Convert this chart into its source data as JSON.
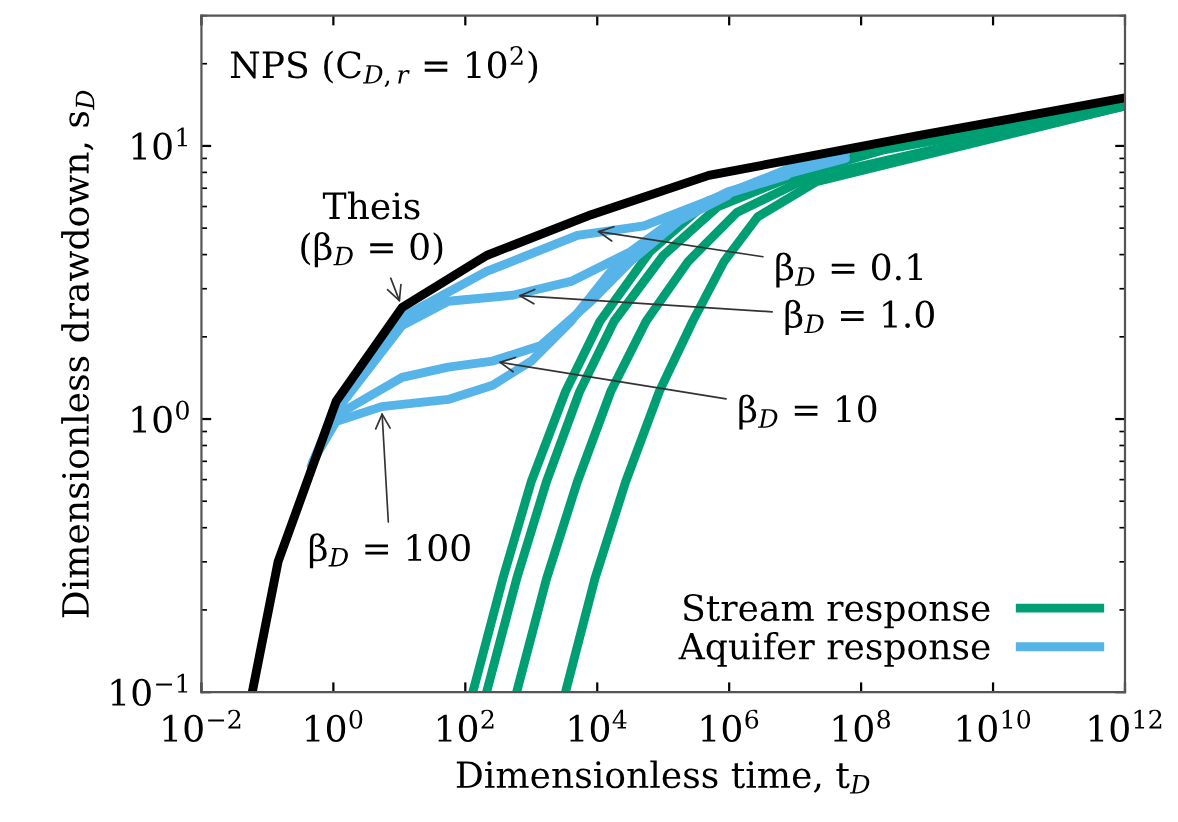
{
  "chart_data": {
    "type": "line",
    "xlabel": "Dimensionless time, t$_{D}$",
    "ylabel": "Dimensionless drawdown, s$_{D}$",
    "log": "xy",
    "legend": "bottom right",
    "marker": "none",
    "line_style": "solid",
    "xlim": [
      0.01,
      1000000000000.0
    ],
    "ylim": [
      0.1,
      30
    ],
    "xticks": [
      {
        "value": 0.01,
        "label": "10$^{−2}$"
      },
      {
        "value": 1,
        "label": "10$^{0}$"
      },
      {
        "value": 100,
        "label": "10$^{2}$"
      },
      {
        "value": 10000,
        "label": "10$^{4}$"
      },
      {
        "value": 1000000.0,
        "label": "10$^{6}$"
      },
      {
        "value": 100000000.0,
        "label": "10$^{8}$"
      },
      {
        "value": 10000000000.0,
        "label": "10$^{10}$"
      },
      {
        "value": 1000000000000.0,
        "label": "10$^{12}$"
      }
    ],
    "yticks": [
      {
        "value": 0.1,
        "label": "10$^{−1}$"
      },
      {
        "value": 1,
        "label": "10$^{0}$"
      },
      {
        "value": 10,
        "label": "10$^{1}$"
      }
    ],
    "series": [
      {
        "color": "#000000",
        "x": [
          0.059,
          0.145,
          0.4,
          1.1,
          11,
          210,
          8100,
          490000,
          730000000.0,
          66000000000.0,
          1000000000000.0
        ],
        "values": [
          0.1,
          0.3,
          0.59,
          1.16,
          2.56,
          3.97,
          5.6,
          7.8,
          10.9,
          13.3,
          15.0
        ]
      },
      {
        "name": "Stream response",
        "color": "#009e73",
        "x": [
          130,
          370,
          1000,
          3300,
          11000,
          63000,
          490000,
          7500000.0,
          230000000.0,
          6900000000.0,
          1000000000000.0
        ],
        "values": [
          0.1,
          0.26,
          0.59,
          1.26,
          2.28,
          4.1,
          6.3,
          7.9,
          9.8,
          11.6,
          14.0
        ]
      },
      {
        "color": "#009e73",
        "x": [
          210,
          600,
          1700,
          5400,
          18000,
          100000,
          680000,
          10000000.0,
          230000000.0,
          1000000000000.0
        ],
        "values": [
          0.1,
          0.26,
          0.59,
          1.26,
          2.28,
          3.97,
          6.0,
          7.8,
          9.7,
          14.0
        ]
      },
      {
        "color": "#009e73",
        "x": [
          600,
          1700,
          5000,
          16000,
          55000,
          240000,
          1300000.0,
          15000000.0,
          1000000000000.0
        ],
        "values": [
          0.1,
          0.26,
          0.59,
          1.26,
          2.28,
          3.78,
          5.7,
          7.6,
          14.0
        ]
      },
      {
        "color": "#009e73",
        "x": [
          3300,
          9200,
          27000,
          87000,
          280000,
          840000,
          2700000.0,
          21000000.0,
          1000000000000.0
        ],
        "values": [
          0.1,
          0.26,
          0.59,
          1.26,
          2.28,
          3.78,
          5.5,
          7.4,
          14.0
        ]
      },
      {
        "name": "Aquifer response",
        "color": "#56b4e9",
        "x": [
          0.46,
          1.1,
          11,
          210,
          5000,
          51000,
          490000,
          7500000.0,
          58000000.0
        ],
        "values": [
          0.67,
          1.11,
          2.36,
          3.47,
          4.7,
          5.1,
          6.3,
          8.2,
          9.4
        ]
      },
      {
        "color": "#56b4e9",
        "x": [
          0.48,
          1.1,
          11,
          55,
          520,
          4000,
          32000,
          170000,
          960000,
          7500000.0,
          58000000.0
        ],
        "values": [
          0.69,
          1.07,
          2.2,
          2.7,
          2.84,
          3.19,
          4.1,
          5.5,
          6.8,
          7.9,
          9.0
        ]
      },
      {
        "color": "#56b4e9",
        "x": [
          0.5,
          1.1,
          11,
          55,
          260,
          1400,
          8100,
          32000,
          170000,
          960000,
          7500000.0
        ],
        "values": [
          0.7,
          1.03,
          1.42,
          1.55,
          1.63,
          1.86,
          2.7,
          3.78,
          5.3,
          6.7,
          7.8
        ]
      },
      {
        "color": "#56b4e9",
        "x": [
          0.52,
          1.1,
          5.4,
          55,
          260,
          1000,
          4000,
          16000,
          120000,
          960000
        ],
        "values": [
          0.72,
          0.98,
          1.11,
          1.18,
          1.33,
          1.63,
          2.28,
          3.47,
          5.1,
          6.6
        ]
      }
    ],
    "annotations": [
      "NPS (C$_{D,r}$ = 10$^{2}$)",
      {
        "text": "Theis\n(β$_{D}$ = 0)",
        "x": 11,
        "y": 2.56
      },
      {
        "text": "β$_{D}$ = 0.1",
        "x": 8100,
        "y": 4.9
      },
      {
        "text": "β$_{D}$ = 1.0",
        "x": 520,
        "y": 2.84
      },
      {
        "text": "β$_{D}$ = 10",
        "x": 260,
        "y": 1.63
      },
      {
        "text": "β$_{D}$ = 100",
        "x": 5.4,
        "y": 1.11
      }
    ]
  }
}
